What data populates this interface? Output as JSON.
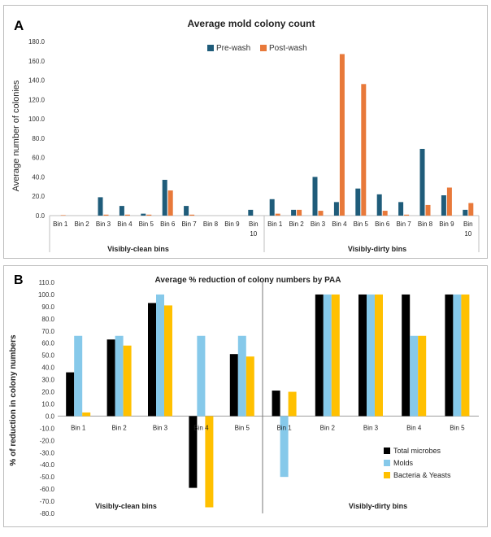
{
  "panel_a": {
    "label": "A",
    "title": "Average mold colony count",
    "ylabel": "Average number of colonies",
    "group_labels": [
      "Visibly-clean bins",
      "Visibly-dirty bins"
    ]
  },
  "panel_b": {
    "label": "B",
    "title": "Average % reduction of colony numbers by PAA",
    "ylabel": "% of reduction in colony numbers",
    "group_labels": [
      "Visibly-clean bins",
      "Visibly-dirty bins"
    ]
  },
  "colors": {
    "pre_wash": "#1f5c7a",
    "post_wash": "#e8793a",
    "total_microbes": "#000000",
    "molds": "#86c9ea",
    "bacteria_yeasts": "#ffc000"
  },
  "chart_data": [
    {
      "type": "bar",
      "title": "Average mold colony count",
      "ylabel": "Average number of colonies",
      "xlabel": "",
      "ylim": [
        0,
        180
      ],
      "yticks": [
        "0.0",
        "20.0",
        "40.0",
        "60.0",
        "80.0",
        "100.0",
        "120.0",
        "140.0",
        "160.0",
        "180.0"
      ],
      "groups": [
        "Visibly-clean bins",
        "Visibly-dirty bins"
      ],
      "categories": [
        "Bin 1",
        "Bin 2",
        "Bin 3",
        "Bin 4",
        "Bin 5",
        "Bin 6",
        "Bin 7",
        "Bin 8",
        "Bin 9",
        "Bin 10"
      ],
      "legend_position": "top-center",
      "series": [
        {
          "name": "Pre-wash",
          "color": "#1f5c7a",
          "group": "Visibly-clean bins",
          "values": [
            0,
            0,
            19,
            10,
            2,
            37,
            10,
            0,
            0,
            6
          ]
        },
        {
          "name": "Post-wash",
          "color": "#e8793a",
          "group": "Visibly-clean bins",
          "values": [
            0.5,
            0,
            1,
            1,
            1,
            26,
            1,
            0,
            0,
            0
          ]
        },
        {
          "name": "Pre-wash",
          "color": "#1f5c7a",
          "group": "Visibly-dirty bins",
          "values": [
            17,
            6,
            40,
            14,
            28,
            22,
            14,
            69,
            21,
            6
          ]
        },
        {
          "name": "Post-wash",
          "color": "#e8793a",
          "group": "Visibly-dirty bins",
          "values": [
            2,
            6,
            5,
            167,
            136,
            5,
            1,
            11,
            29,
            13
          ]
        }
      ]
    },
    {
      "type": "bar",
      "title": "Average % reduction of colony numbers by PAA",
      "ylabel": "% of reduction in colony numbers",
      "xlabel": "",
      "ylim": [
        -80,
        110
      ],
      "yticks": [
        "-80.0",
        "-70.0",
        "-60.0",
        "-50.0",
        "-40.0",
        "-30.0",
        "-20.0",
        "-10.0",
        "0.0",
        "10.0",
        "20.0",
        "30.0",
        "40.0",
        "50.0",
        "60.0",
        "70.0",
        "80.0",
        "90.0",
        "100.0",
        "110.0"
      ],
      "groups": [
        "Visibly-clean bins",
        "Visibly-dirty bins"
      ],
      "categories": [
        "Bin 1",
        "Bin 2",
        "Bin 3",
        "Bin 4",
        "Bin 5"
      ],
      "legend_position": "bottom-right",
      "series": [
        {
          "name": "Total microbes",
          "color": "#000000",
          "group": "Visibly-clean bins",
          "values": [
            36,
            63,
            93,
            -59,
            51
          ]
        },
        {
          "name": "Molds",
          "color": "#86c9ea",
          "group": "Visibly-clean bins",
          "values": [
            66,
            66,
            100,
            66,
            66
          ]
        },
        {
          "name": "Bacteria & Yeasts",
          "color": "#ffc000",
          "group": "Visibly-clean bins",
          "values": [
            3,
            58,
            91,
            -75,
            49
          ]
        },
        {
          "name": "Total microbes",
          "color": "#000000",
          "group": "Visibly-dirty bins",
          "values": [
            21,
            100,
            100,
            100,
            100
          ]
        },
        {
          "name": "Molds",
          "color": "#86c9ea",
          "group": "Visibly-dirty bins",
          "values": [
            -50,
            100,
            100,
            66,
            100
          ]
        },
        {
          "name": "Bacteria & Yeasts",
          "color": "#ffc000",
          "group": "Visibly-dirty bins",
          "values": [
            20,
            100,
            100,
            66,
            100
          ]
        }
      ]
    }
  ]
}
